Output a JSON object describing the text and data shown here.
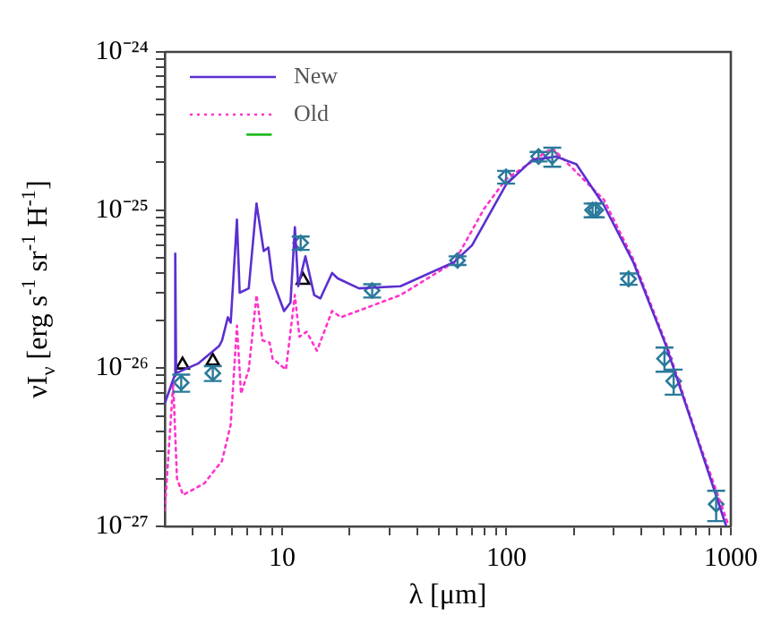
{
  "chart_data": {
    "type": "line",
    "xlabel": "λ [μm]",
    "ylabel": "νI$_{ν}$ [erg s$^{-1}$ sr$^{-1}$ H$^{-1}$]",
    "log": "xy",
    "grid": false,
    "legend": "top left",
    "xlim": [
      3,
      1000
    ],
    "ylim": [
      1e-27,
      1e-24
    ],
    "xticks": [
      {
        "value": 4,
        "label": null
      },
      {
        "value": 5,
        "label": null
      },
      {
        "value": 6,
        "label": null
      },
      {
        "value": 7,
        "label": null
      },
      {
        "value": 8,
        "label": null
      },
      {
        "value": 9,
        "label": null
      },
      10,
      {
        "value": 20,
        "label": null
      },
      {
        "value": 30,
        "label": null
      },
      {
        "value": 40,
        "label": null
      },
      {
        "value": 50,
        "label": null
      },
      {
        "value": 60,
        "label": null
      },
      {
        "value": 70,
        "label": null
      },
      {
        "value": 80,
        "label": null
      },
      {
        "value": 90,
        "label": null
      },
      100,
      {
        "value": 200,
        "label": null
      },
      {
        "value": 300,
        "label": null
      },
      {
        "value": 400,
        "label": null
      },
      {
        "value": 500,
        "label": null
      },
      {
        "value": 600,
        "label": null
      },
      {
        "value": 700,
        "label": null
      },
      {
        "value": 800,
        "label": null
      },
      {
        "value": 900,
        "label": null
      },
      1000
    ],
    "yticks": [
      {
        "value": 1e-27,
        "label": "10⁻²⁷"
      },
      {
        "value": 2e-27,
        "label": null
      },
      {
        "value": 3e-27,
        "label": null
      },
      {
        "value": 4e-27,
        "label": null
      },
      {
        "value": 5e-27,
        "label": null
      },
      {
        "value": 6e-27,
        "label": null
      },
      {
        "value": 7e-27,
        "label": null
      },
      {
        "value": 8e-27,
        "label": null
      },
      {
        "value": 9e-27,
        "label": null
      },
      {
        "value": 1e-26,
        "label": "10⁻²⁶"
      },
      {
        "value": 2e-26,
        "label": null
      },
      {
        "value": 3e-26,
        "label": null
      },
      {
        "value": 4e-26,
        "label": null
      },
      {
        "value": 5e-26,
        "label": null
      },
      {
        "value": 6e-26,
        "label": null
      },
      {
        "value": 7e-26,
        "label": null
      },
      {
        "value": 8e-26,
        "label": null
      },
      {
        "value": 9e-26,
        "label": null
      },
      {
        "value": 1e-25,
        "label": "10⁻²⁵"
      },
      {
        "value": 2e-25,
        "label": null
      },
      {
        "value": 3e-25,
        "label": null
      },
      {
        "value": 4e-25,
        "label": null
      },
      {
        "value": 5e-25,
        "label": null
      },
      {
        "value": 6e-25,
        "label": null
      },
      {
        "value": 7e-25,
        "label": null
      },
      {
        "value": 8e-25,
        "label": null
      },
      {
        "value": 9e-25,
        "label": null
      },
      {
        "value": 1e-24,
        "label": "10⁻²⁴"
      }
    ],
    "series": [
      {
        "name": "New",
        "type": "line",
        "color": "#5b2fd0",
        "line_style": "solid",
        "marker": "none",
        "x": [
          3.0,
          3.31,
          3.34,
          3.37,
          4.22,
          5.24,
          5.4,
          5.73,
          5.9,
          6.29,
          6.47,
          7.1,
          7.69,
          8.28,
          8.68,
          9.07,
          10.2,
          10.9,
          11.4,
          11.8,
          12.7,
          13.9,
          14.8,
          16.7,
          17.7,
          22.0,
          33.7,
          58.6,
          70.3,
          99.6,
          130,
          166,
          205,
          272,
          367,
          515,
          717,
          950
        ],
        "values": [
          6e-27,
          8.9e-27,
          5.3e-26,
          9.3e-27,
          1.07e-26,
          1.38e-26,
          1.5e-26,
          2.1e-26,
          1.94e-26,
          8.7e-26,
          3e-26,
          3.2e-26,
          1.1e-25,
          5.5e-26,
          5.8e-26,
          3.6e-26,
          2.3e-26,
          2.6e-26,
          7.8e-26,
          3.3e-26,
          5.1e-26,
          2.9e-26,
          2.76e-26,
          4e-26,
          3.7e-26,
          3.2e-26,
          3.3e-26,
          4.7e-26,
          6e-26,
          1.45e-25,
          2.07e-25,
          2.18e-25,
          1.95e-25,
          1.07e-25,
          4.7e-26,
          1.38e-26,
          3.4e-27,
          1.02e-27
        ]
      },
      {
        "name": "Old",
        "type": "line",
        "color": "#ff33cc",
        "line_style": "dotted",
        "marker": "none",
        "x": [
          3.0,
          3.27,
          3.4,
          3.62,
          4.5,
          5.4,
          5.9,
          6.29,
          6.56,
          7.1,
          7.69,
          8.18,
          8.8,
          9.07,
          10.4,
          11.4,
          11.95,
          12.85,
          14.3,
          16.7,
          18.3,
          33.7,
          58.6,
          79.5,
          99.6,
          160,
          272,
          367,
          515,
          717,
          975
        ],
        "values": [
          1.26e-27,
          8.1e-27,
          2e-27,
          1.58e-27,
          1.87e-27,
          2.6e-27,
          4.4e-27,
          1.86e-26,
          6.9e-27,
          9.8e-27,
          2.9e-26,
          1.5e-26,
          1.45e-26,
          1.15e-26,
          9.8e-27,
          2.9e-26,
          1.58e-26,
          1.7e-26,
          1.29e-26,
          2.3e-26,
          2.1e-26,
          2.9e-26,
          4.7e-26,
          1.02e-25,
          1.57e-25,
          2.47e-25,
          1.16e-25,
          4.9e-26,
          1.43e-26,
          3.5e-27,
          1.02e-27
        ]
      },
      {
        "type": "line",
        "color": "#22bb22",
        "line_style": "solid",
        "marker": "none",
        "x": [
          7.0,
          8.9
        ],
        "values": [
          3e-25,
          3e-25
        ]
      },
      {
        "type": "scatter",
        "color": "#2a7a9a",
        "marker": "diamond",
        "x": [
          3.55,
          4.91,
          12.1,
          25.2,
          60.5,
          99.6,
          139,
          160,
          242,
          250,
          350,
          506,
          556,
          860
        ],
        "values": [
          8.1e-27,
          9.3e-27,
          6.2e-26,
          3.1e-26,
          4.8e-26,
          1.62e-25,
          2.18e-25,
          2.18e-25,
          1e-25,
          1e-25,
          3.67e-26,
          1.15e-26,
          8.3e-27,
          1.38e-27
        ],
        "errors": [
          1e-27,
          1e-27,
          6e-27,
          3e-27,
          3e-27,
          1.5e-26,
          1.5e-26,
          3e-26,
          1e-26,
          1e-26,
          3e-27,
          2e-27,
          1.5e-27,
          3e-28
        ]
      },
      {
        "type": "scatter",
        "color": "#000000",
        "marker": "triangle",
        "x": [
          3.6,
          4.91,
          12.4
        ],
        "values": [
          1.05e-26,
          1.11e-26,
          3.6e-26
        ]
      }
    ]
  }
}
